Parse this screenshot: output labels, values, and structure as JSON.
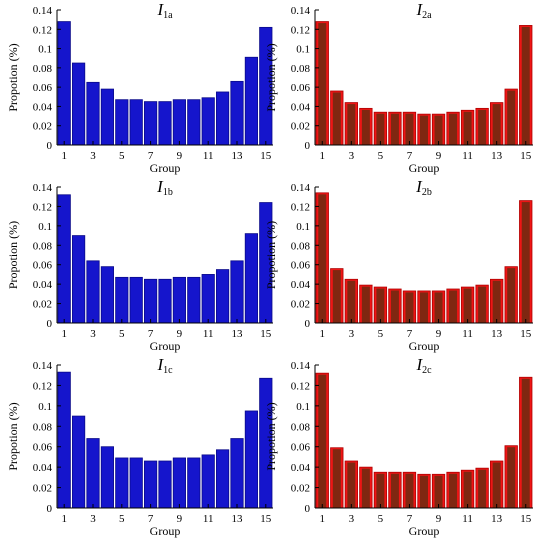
{
  "colors": {
    "blue_fill": "#1515cc",
    "blue_stroke": "#0a0a8a",
    "red_fill": "#ee1515",
    "red_inner": "#6b2a10",
    "red_stroke": "#b00000"
  },
  "chart_data": [
    {
      "type": "bar",
      "title": "I",
      "title_sub": "1a",
      "xlabel": "Group",
      "ylabel": "Propotion (%)",
      "ylim": [
        0,
        0.14
      ],
      "yticks": [
        "0",
        "0.02",
        "0.04",
        "0.06",
        "0.08",
        "0.1",
        "0.12",
        "0.14"
      ],
      "xticks": [
        "1",
        "3",
        "5",
        "7",
        "9",
        "11",
        "13",
        "15"
      ],
      "categories": [
        1,
        2,
        3,
        4,
        5,
        6,
        7,
        8,
        9,
        10,
        11,
        12,
        13,
        14,
        15
      ],
      "values": [
        0.128,
        0.085,
        0.065,
        0.058,
        0.047,
        0.047,
        0.045,
        0.045,
        0.047,
        0.047,
        0.049,
        0.055,
        0.066,
        0.091,
        0.122
      ],
      "color": "blue"
    },
    {
      "type": "bar",
      "title": "I",
      "title_sub": "2a",
      "xlabel": "Group",
      "ylabel": "Propotion (%)",
      "ylim": [
        0,
        0.14
      ],
      "yticks": [
        "0",
        "0.02",
        "0.04",
        "0.06",
        "0.08",
        "0.1",
        "0.12",
        "0.14"
      ],
      "xticks": [
        "1",
        "3",
        "5",
        "7",
        "9",
        "11",
        "13",
        "15"
      ],
      "categories": [
        1,
        2,
        3,
        4,
        5,
        6,
        7,
        8,
        9,
        10,
        11,
        12,
        13,
        14,
        15
      ],
      "values": [
        0.128,
        0.056,
        0.044,
        0.038,
        0.034,
        0.034,
        0.034,
        0.032,
        0.032,
        0.034,
        0.036,
        0.038,
        0.044,
        0.058,
        0.124
      ],
      "color": "red"
    },
    {
      "type": "bar",
      "title": "I",
      "title_sub": "1b",
      "xlabel": "Group",
      "ylabel": "Propotion (%)",
      "ylim": [
        0,
        0.14
      ],
      "yticks": [
        "0",
        "0.02",
        "0.04",
        "0.06",
        "0.08",
        "0.1",
        "0.12",
        "0.14"
      ],
      "xticks": [
        "1",
        "3",
        "5",
        "7",
        "9",
        "11",
        "13",
        "15"
      ],
      "categories": [
        1,
        2,
        3,
        4,
        5,
        6,
        7,
        8,
        9,
        10,
        11,
        12,
        13,
        14,
        15
      ],
      "values": [
        0.132,
        0.09,
        0.064,
        0.058,
        0.047,
        0.047,
        0.045,
        0.045,
        0.047,
        0.047,
        0.05,
        0.055,
        0.064,
        0.092,
        0.124
      ],
      "color": "blue"
    },
    {
      "type": "bar",
      "title": "I",
      "title_sub": "2b",
      "xlabel": "Group",
      "ylabel": "Propotion (%)",
      "ylim": [
        0,
        0.14
      ],
      "yticks": [
        "0",
        "0.02",
        "0.04",
        "0.06",
        "0.08",
        "0.1",
        "0.12",
        "0.14"
      ],
      "xticks": [
        "1",
        "3",
        "5",
        "7",
        "9",
        "11",
        "13",
        "15"
      ],
      "categories": [
        1,
        2,
        3,
        4,
        5,
        6,
        7,
        8,
        9,
        10,
        11,
        12,
        13,
        14,
        15
      ],
      "values": [
        0.134,
        0.056,
        0.045,
        0.039,
        0.037,
        0.035,
        0.033,
        0.033,
        0.033,
        0.035,
        0.037,
        0.039,
        0.045,
        0.058,
        0.126
      ],
      "color": "red"
    },
    {
      "type": "bar",
      "title": "I",
      "title_sub": "1c",
      "xlabel": "Group",
      "ylabel": "Propotion (%)",
      "ylim": [
        0,
        0.14
      ],
      "yticks": [
        "0",
        "0.02",
        "0.04",
        "0.06",
        "0.08",
        "0.1",
        "0.12",
        "0.14"
      ],
      "xticks": [
        "1",
        "3",
        "5",
        "7",
        "9",
        "11",
        "13",
        "15"
      ],
      "categories": [
        1,
        2,
        3,
        4,
        5,
        6,
        7,
        8,
        9,
        10,
        11,
        12,
        13,
        14,
        15
      ],
      "values": [
        0.133,
        0.09,
        0.068,
        0.06,
        0.049,
        0.049,
        0.046,
        0.046,
        0.049,
        0.049,
        0.052,
        0.057,
        0.068,
        0.095,
        0.127
      ],
      "color": "blue"
    },
    {
      "type": "bar",
      "title": "I",
      "title_sub": "2c",
      "xlabel": "Group",
      "ylabel": "Propotion (%)",
      "ylim": [
        0,
        0.14
      ],
      "yticks": [
        "0",
        "0.02",
        "0.04",
        "0.06",
        "0.08",
        "0.1",
        "0.12",
        "0.14"
      ],
      "xticks": [
        "1",
        "3",
        "5",
        "7",
        "9",
        "11",
        "13",
        "15"
      ],
      "categories": [
        1,
        2,
        3,
        4,
        5,
        6,
        7,
        8,
        9,
        10,
        11,
        12,
        13,
        14,
        15
      ],
      "values": [
        0.132,
        0.059,
        0.046,
        0.04,
        0.035,
        0.035,
        0.035,
        0.033,
        0.033,
        0.035,
        0.037,
        0.039,
        0.046,
        0.061,
        0.128
      ],
      "color": "red"
    }
  ]
}
